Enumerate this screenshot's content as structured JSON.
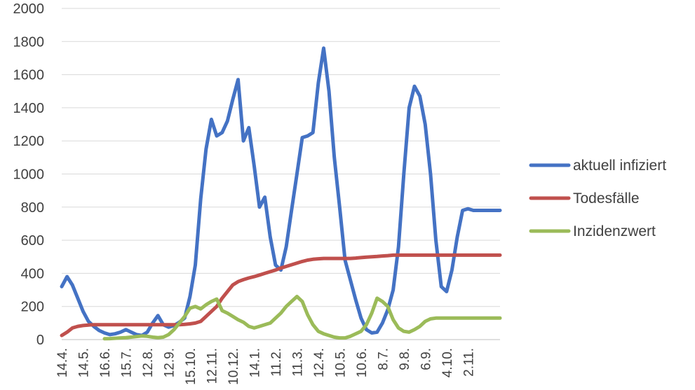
{
  "chart_data": {
    "type": "line",
    "title": "",
    "xlabel": "",
    "ylabel": "",
    "ylim": [
      0,
      2000
    ],
    "y_ticks": [
      0,
      200,
      400,
      600,
      800,
      1000,
      1200,
      1400,
      1600,
      1800,
      2000
    ],
    "x_count": 83,
    "x_ticks": [
      {
        "i": 0,
        "label": "14.4."
      },
      {
        "i": 4,
        "label": "14.5."
      },
      {
        "i": 8,
        "label": "16.6."
      },
      {
        "i": 12,
        "label": "15.7."
      },
      {
        "i": 16,
        "label": "12.8."
      },
      {
        "i": 20,
        "label": "12.9."
      },
      {
        "i": 24,
        "label": "15.10."
      },
      {
        "i": 28,
        "label": "12.11."
      },
      {
        "i": 32,
        "label": "10.12."
      },
      {
        "i": 36,
        "label": "14.1."
      },
      {
        "i": 40,
        "label": "11.2."
      },
      {
        "i": 44,
        "label": "11.3."
      },
      {
        "i": 48,
        "label": "12.4."
      },
      {
        "i": 52,
        "label": "10.5."
      },
      {
        "i": 56,
        "label": "10.6."
      },
      {
        "i": 60,
        "label": "8.7."
      },
      {
        "i": 64,
        "label": "9.8."
      },
      {
        "i": 68,
        "label": "6.9."
      },
      {
        "i": 72,
        "label": "4.10."
      },
      {
        "i": 76,
        "label": "2.11."
      }
    ],
    "grid": true,
    "legend_position": "right",
    "series": [
      {
        "name": "aktuell infiziert",
        "color": "#4472c4",
        "start": 0,
        "values": [
          320,
          380,
          330,
          250,
          170,
          110,
          80,
          55,
          40,
          30,
          35,
          45,
          60,
          45,
          30,
          25,
          45,
          100,
          145,
          90,
          75,
          85,
          105,
          130,
          260,
          450,
          850,
          1150,
          1330,
          1230,
          1250,
          1320,
          1450,
          1570,
          1200,
          1280,
          1050,
          800,
          860,
          620,
          450,
          420,
          560,
          780,
          1000,
          1220,
          1230,
          1250,
          1550,
          1760,
          1500,
          1100,
          800,
          480,
          360,
          240,
          130,
          60,
          40,
          45,
          100,
          180,
          300,
          560,
          1000,
          1400,
          1530,
          1470,
          1300,
          1000,
          600,
          320,
          290,
          420,
          620,
          780,
          790,
          780,
          780,
          780,
          780,
          780,
          780
        ]
      },
      {
        "name": "Todesfälle",
        "color": "#c0504d",
        "start": 0,
        "values": [
          25,
          45,
          70,
          80,
          85,
          88,
          90,
          90,
          90,
          90,
          90,
          90,
          90,
          90,
          90,
          90,
          90,
          90,
          90,
          90,
          90,
          90,
          90,
          92,
          95,
          100,
          110,
          140,
          170,
          200,
          250,
          290,
          330,
          350,
          362,
          372,
          380,
          390,
          400,
          410,
          420,
          432,
          442,
          452,
          462,
          472,
          480,
          485,
          488,
          490,
          490,
          490,
          490,
          490,
          490,
          492,
          495,
          498,
          500,
          502,
          505,
          507,
          510,
          510,
          510,
          510,
          510,
          510,
          510,
          510,
          510,
          510,
          510,
          510,
          510,
          510,
          510,
          510,
          510,
          510,
          510,
          510,
          510
        ]
      },
      {
        "name": "Inzidenzwert",
        "color": "#9bbb59",
        "start": 8,
        "values": [
          5,
          6,
          8,
          10,
          12,
          15,
          18,
          22,
          20,
          15,
          12,
          15,
          30,
          60,
          100,
          140,
          190,
          200,
          185,
          210,
          230,
          245,
          175,
          160,
          140,
          120,
          105,
          80,
          70,
          80,
          90,
          100,
          130,
          160,
          200,
          230,
          260,
          230,
          150,
          90,
          50,
          35,
          25,
          15,
          10,
          10,
          20,
          35,
          50,
          90,
          160,
          250,
          230,
          200,
          120,
          70,
          50,
          45,
          60,
          80,
          110,
          125,
          130,
          130,
          130,
          130,
          130,
          130,
          130,
          130,
          130,
          130,
          130,
          130,
          130
        ]
      }
    ]
  }
}
